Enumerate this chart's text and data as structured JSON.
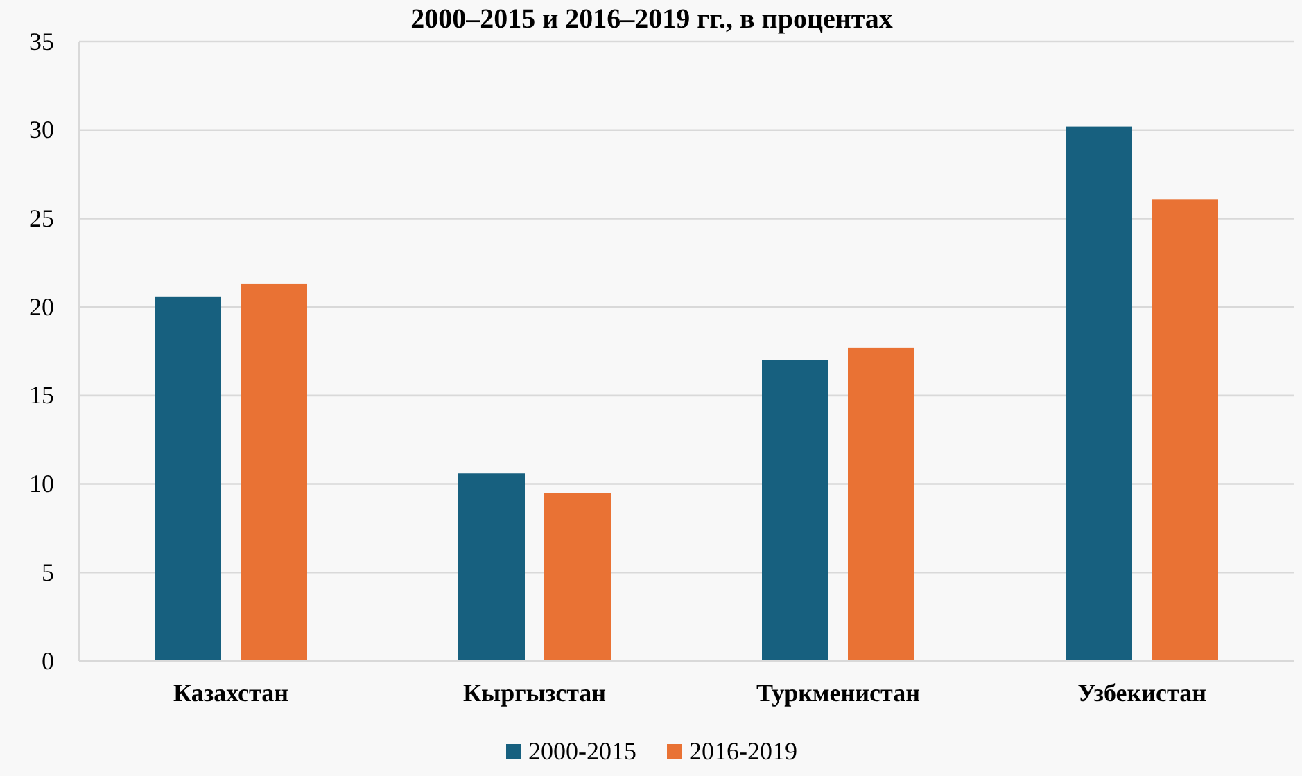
{
  "chart_data": {
    "type": "bar",
    "title": "2000–2015 и 2016–2019 гг., в процентах",
    "categories": [
      "Казахстан",
      "Кыргызстан",
      "Туркменистан",
      "Узбекистан"
    ],
    "series": [
      {
        "name": "2000-2015",
        "color": "#17607f",
        "values": [
          20.6,
          10.6,
          17.0,
          30.2
        ]
      },
      {
        "name": "2016-2019",
        "color": "#e97234",
        "values": [
          21.3,
          9.5,
          17.7,
          26.1
        ]
      }
    ],
    "ylim": [
      0,
      35
    ],
    "yticks": [
      0,
      5,
      10,
      15,
      20,
      25,
      30,
      35
    ],
    "grid": "y",
    "legend": "bottom"
  }
}
